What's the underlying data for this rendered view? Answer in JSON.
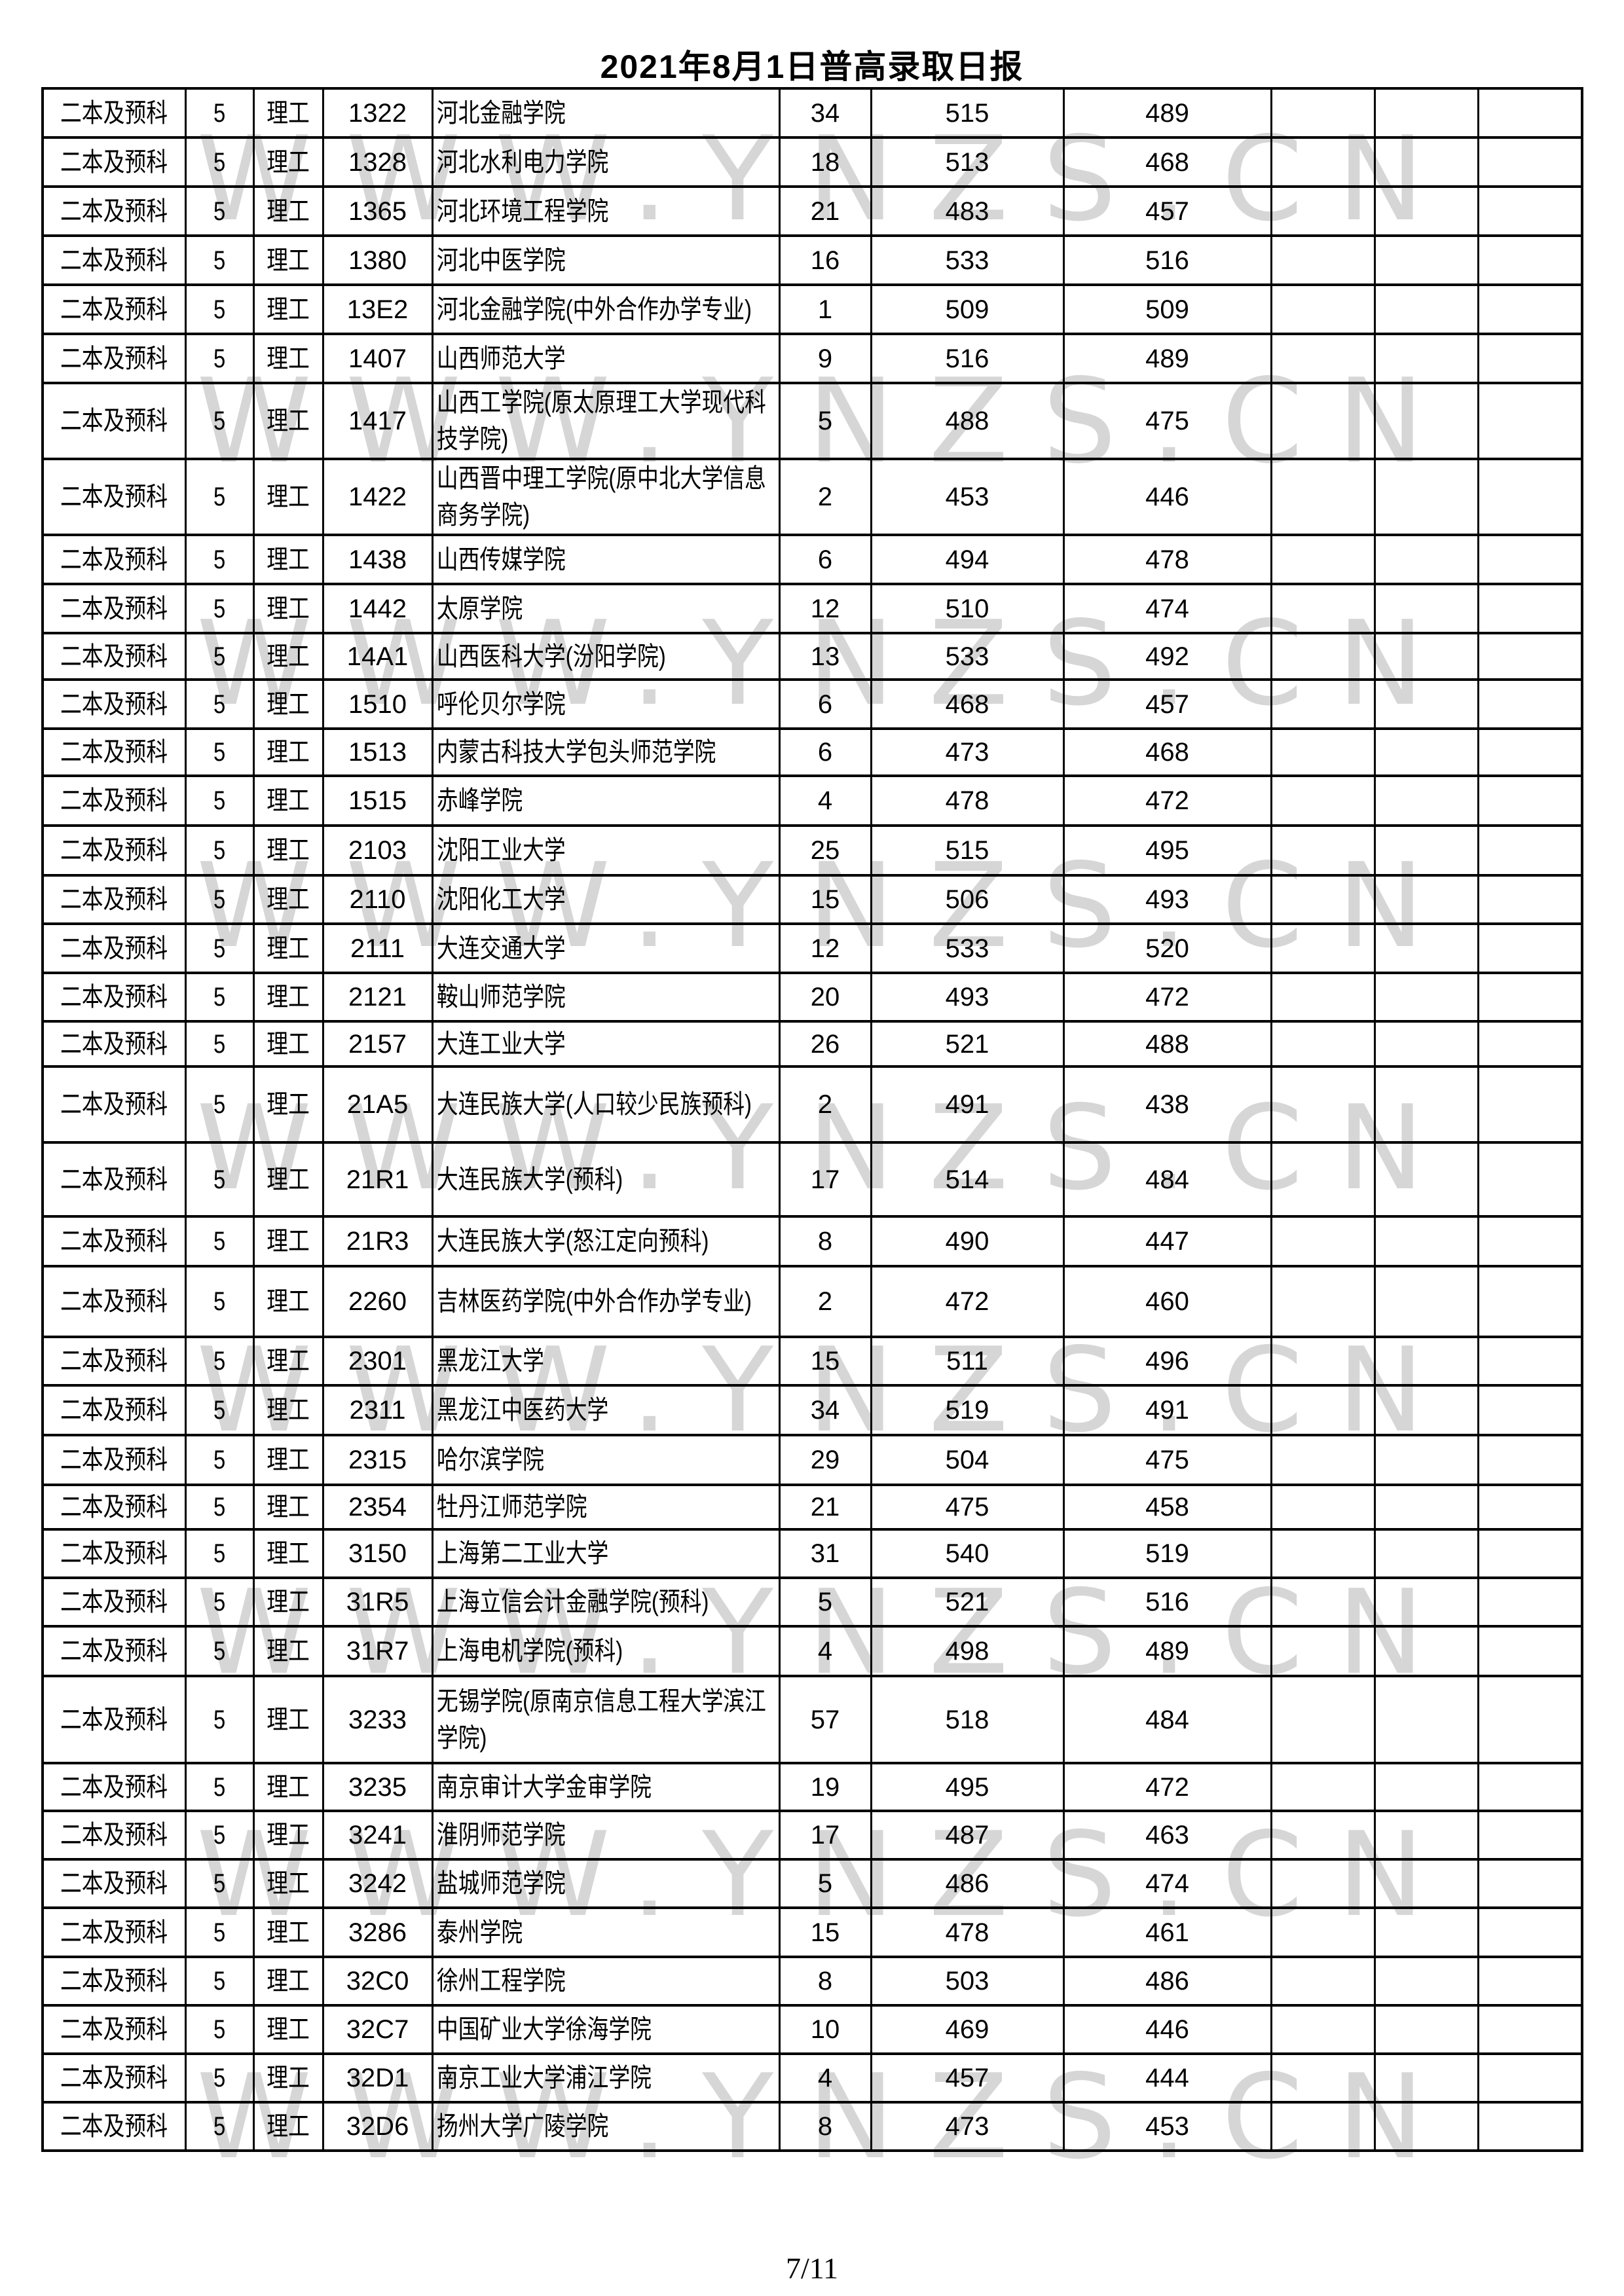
{
  "page": {
    "title": "2021年8月1日普高录取日报",
    "footer": "7/11",
    "watermark": {
      "text": "WWW.YNZS.CN",
      "color": "#d6d6d6"
    }
  },
  "table": {
    "rows": [
      {
        "batch": "二本及预科",
        "round": "5",
        "subject": "理工",
        "code": "1322",
        "name": "河北金融学院",
        "count": "34",
        "high": "515",
        "low": "489"
      },
      {
        "batch": "二本及预科",
        "round": "5",
        "subject": "理工",
        "code": "1328",
        "name": "河北水利电力学院",
        "count": "18",
        "high": "513",
        "low": "468"
      },
      {
        "batch": "二本及预科",
        "round": "5",
        "subject": "理工",
        "code": "1365",
        "name": "河北环境工程学院",
        "count": "21",
        "high": "483",
        "low": "457"
      },
      {
        "batch": "二本及预科",
        "round": "5",
        "subject": "理工",
        "code": "1380",
        "name": "河北中医学院",
        "count": "16",
        "high": "533",
        "low": "516"
      },
      {
        "batch": "二本及预科",
        "round": "5",
        "subject": "理工",
        "code": "13E2",
        "name": "河北金融学院(中外合作办学专业)",
        "count": "1",
        "high": "509",
        "low": "509"
      },
      {
        "batch": "二本及预科",
        "round": "5",
        "subject": "理工",
        "code": "1407",
        "name": "山西师范大学",
        "count": "9",
        "high": "516",
        "low": "489"
      },
      {
        "batch": "二本及预科",
        "round": "5",
        "subject": "理工",
        "code": "1417",
        "name": "山西工学院(原太原理工大学现代科技学院)",
        "count": "5",
        "high": "488",
        "low": "475"
      },
      {
        "batch": "二本及预科",
        "round": "5",
        "subject": "理工",
        "code": "1422",
        "name": "山西晋中理工学院(原中北大学信息商务学院)",
        "count": "2",
        "high": "453",
        "low": "446"
      },
      {
        "batch": "二本及预科",
        "round": "5",
        "subject": "理工",
        "code": "1438",
        "name": "山西传媒学院",
        "count": "6",
        "high": "494",
        "low": "478"
      },
      {
        "batch": "二本及预科",
        "round": "5",
        "subject": "理工",
        "code": "1442",
        "name": "太原学院",
        "count": "12",
        "high": "510",
        "low": "474"
      },
      {
        "batch": "二本及预科",
        "round": "5",
        "subject": "理工",
        "code": "14A1",
        "name": "山西医科大学(汾阳学院)",
        "count": "13",
        "high": "533",
        "low": "492"
      },
      {
        "batch": "二本及预科",
        "round": "5",
        "subject": "理工",
        "code": "1510",
        "name": "呼伦贝尔学院",
        "count": "6",
        "high": "468",
        "low": "457"
      },
      {
        "batch": "二本及预科",
        "round": "5",
        "subject": "理工",
        "code": "1513",
        "name": "内蒙古科技大学包头师范学院",
        "count": "6",
        "high": "473",
        "low": "468"
      },
      {
        "batch": "二本及预科",
        "round": "5",
        "subject": "理工",
        "code": "1515",
        "name": "赤峰学院",
        "count": "4",
        "high": "478",
        "low": "472"
      },
      {
        "batch": "二本及预科",
        "round": "5",
        "subject": "理工",
        "code": "2103",
        "name": "沈阳工业大学",
        "count": "25",
        "high": "515",
        "low": "495"
      },
      {
        "batch": "二本及预科",
        "round": "5",
        "subject": "理工",
        "code": "2110",
        "name": "沈阳化工大学",
        "count": "15",
        "high": "506",
        "low": "493"
      },
      {
        "batch": "二本及预科",
        "round": "5",
        "subject": "理工",
        "code": "2111",
        "name": "大连交通大学",
        "count": "12",
        "high": "533",
        "low": "520"
      },
      {
        "batch": "二本及预科",
        "round": "5",
        "subject": "理工",
        "code": "2121",
        "name": "鞍山师范学院",
        "count": "20",
        "high": "493",
        "low": "472"
      },
      {
        "batch": "二本及预科",
        "round": "5",
        "subject": "理工",
        "code": "2157",
        "name": "大连工业大学",
        "count": "26",
        "high": "521",
        "low": "488"
      },
      {
        "batch": "二本及预科",
        "round": "5",
        "subject": "理工",
        "code": "21A5",
        "name": "大连民族大学(人口较少民族预科)",
        "count": "2",
        "high": "491",
        "low": "438"
      },
      {
        "batch": "二本及预科",
        "round": "5",
        "subject": "理工",
        "code": "21R1",
        "name": "大连民族大学(预科)",
        "count": "17",
        "high": "514",
        "low": "484"
      },
      {
        "batch": "二本及预科",
        "round": "5",
        "subject": "理工",
        "code": "21R3",
        "name": "大连民族大学(怒江定向预科)",
        "count": "8",
        "high": "490",
        "low": "447"
      },
      {
        "batch": "二本及预科",
        "round": "5",
        "subject": "理工",
        "code": "2260",
        "name": "吉林医药学院(中外合作办学专业)",
        "count": "2",
        "high": "472",
        "low": "460"
      },
      {
        "batch": "二本及预科",
        "round": "5",
        "subject": "理工",
        "code": "2301",
        "name": "黑龙江大学",
        "count": "15",
        "high": "511",
        "low": "496"
      },
      {
        "batch": "二本及预科",
        "round": "5",
        "subject": "理工",
        "code": "2311",
        "name": "黑龙江中医药大学",
        "count": "34",
        "high": "519",
        "low": "491"
      },
      {
        "batch": "二本及预科",
        "round": "5",
        "subject": "理工",
        "code": "2315",
        "name": "哈尔滨学院",
        "count": "29",
        "high": "504",
        "low": "475"
      },
      {
        "batch": "二本及预科",
        "round": "5",
        "subject": "理工",
        "code": "2354",
        "name": "牡丹江师范学院",
        "count": "21",
        "high": "475",
        "low": "458"
      },
      {
        "batch": "二本及预科",
        "round": "5",
        "subject": "理工",
        "code": "3150",
        "name": "上海第二工业大学",
        "count": "31",
        "high": "540",
        "low": "519"
      },
      {
        "batch": "二本及预科",
        "round": "5",
        "subject": "理工",
        "code": "31R5",
        "name": "上海立信会计金融学院(预科)",
        "count": "5",
        "high": "521",
        "low": "516"
      },
      {
        "batch": "二本及预科",
        "round": "5",
        "subject": "理工",
        "code": "31R7",
        "name": "上海电机学院(预科)",
        "count": "4",
        "high": "498",
        "low": "489"
      },
      {
        "batch": "二本及预科",
        "round": "5",
        "subject": "理工",
        "code": "3233",
        "name": "无锡学院(原南京信息工程大学滨江学院)",
        "count": "57",
        "high": "518",
        "low": "484"
      },
      {
        "batch": "二本及预科",
        "round": "5",
        "subject": "理工",
        "code": "3235",
        "name": "南京审计大学金审学院",
        "count": "19",
        "high": "495",
        "low": "472"
      },
      {
        "batch": "二本及预科",
        "round": "5",
        "subject": "理工",
        "code": "3241",
        "name": "淮阴师范学院",
        "count": "17",
        "high": "487",
        "low": "463"
      },
      {
        "batch": "二本及预科",
        "round": "5",
        "subject": "理工",
        "code": "3242",
        "name": "盐城师范学院",
        "count": "5",
        "high": "486",
        "low": "474"
      },
      {
        "batch": "二本及预科",
        "round": "5",
        "subject": "理工",
        "code": "3286",
        "name": "泰州学院",
        "count": "15",
        "high": "478",
        "low": "461"
      },
      {
        "batch": "二本及预科",
        "round": "5",
        "subject": "理工",
        "code": "32C0",
        "name": "徐州工程学院",
        "count": "8",
        "high": "503",
        "low": "486"
      },
      {
        "batch": "二本及预科",
        "round": "5",
        "subject": "理工",
        "code": "32C7",
        "name": "中国矿业大学徐海学院",
        "count": "10",
        "high": "469",
        "low": "446"
      },
      {
        "batch": "二本及预科",
        "round": "5",
        "subject": "理工",
        "code": "32D1",
        "name": "南京工业大学浦江学院",
        "count": "4",
        "high": "457",
        "low": "444"
      },
      {
        "batch": "二本及预科",
        "round": "5",
        "subject": "理工",
        "code": "32D6",
        "name": "扬州大学广陵学院",
        "count": "8",
        "high": "473",
        "low": "453"
      }
    ]
  }
}
